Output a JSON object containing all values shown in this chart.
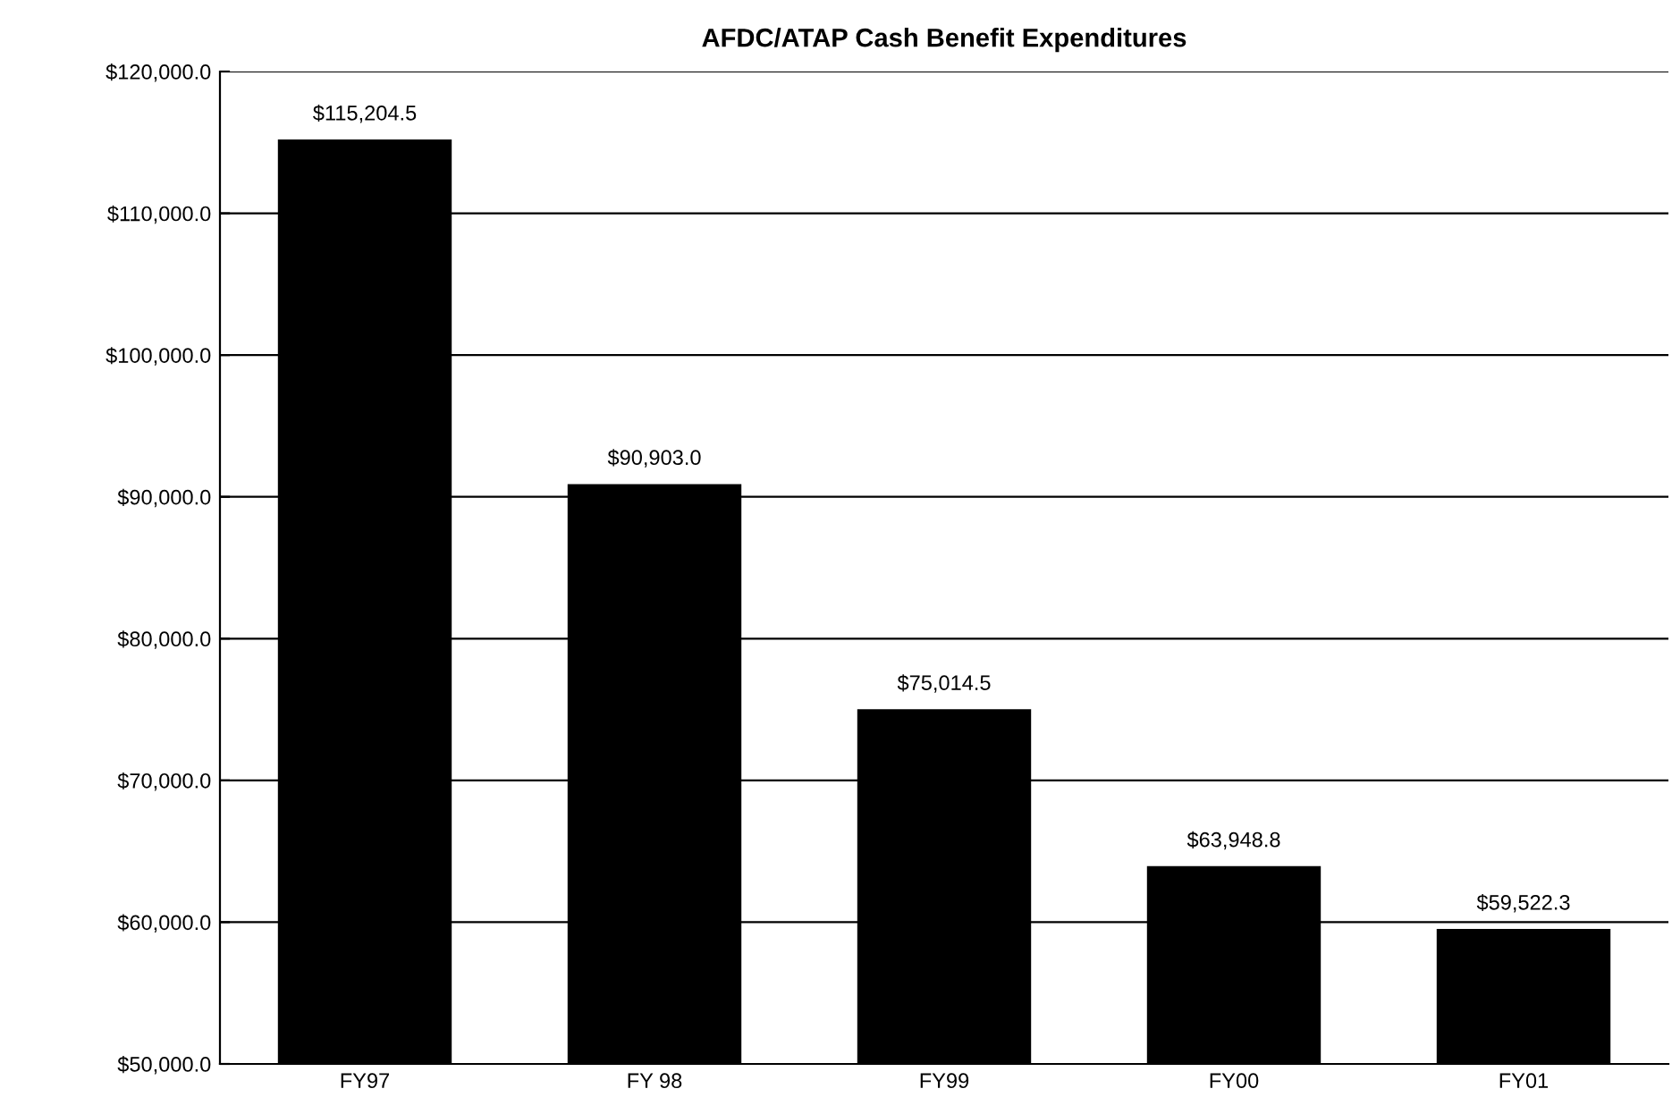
{
  "chart_data": {
    "type": "bar",
    "title": "AFDC/ATAP Cash Benefit Expenditures",
    "categories": [
      "FY97",
      "FY 98",
      "FY99",
      "FY00",
      "FY01"
    ],
    "values": [
      115204.5,
      90903.0,
      75014.5,
      63948.8,
      59522.3
    ],
    "value_labels": [
      "$115,204.5",
      "$90,903.0",
      "$75,014.5",
      "$63,948.8",
      "$59,522.3"
    ],
    "color": "#000000",
    "ylim": [
      50000,
      120000
    ],
    "yticks": [
      {
        "value": 50000,
        "label": "$50,000.0"
      },
      {
        "value": 60000,
        "label": "$60,000.0"
      },
      {
        "value": 70000,
        "label": "$70,000.0"
      },
      {
        "value": 80000,
        "label": "$80,000.0"
      },
      {
        "value": 90000,
        "label": "$90,000.0"
      },
      {
        "value": 100000,
        "label": "$100,000.0"
      },
      {
        "value": 110000,
        "label": "$110,000.0"
      },
      {
        "value": 120000,
        "label": "$120,000.0"
      }
    ],
    "grid": "y",
    "legend": false
  }
}
